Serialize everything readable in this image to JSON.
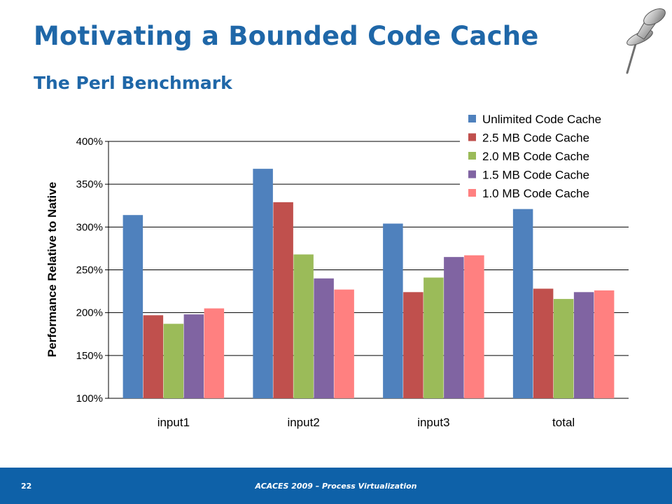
{
  "slide": {
    "title": "Motivating a Bounded Code Cache",
    "subtitle": "The Perl Benchmark"
  },
  "footer": {
    "page_number": "22",
    "text": "ACACES 2009 – Process Virtualization"
  },
  "decor": {
    "pin_icon": "push-pin-icon"
  },
  "chart_data": {
    "type": "bar",
    "title": "",
    "xlabel": "",
    "ylabel": "Performance Relative to Native",
    "ylim": [
      100,
      400
    ],
    "yticks": [
      100,
      150,
      200,
      250,
      300,
      350,
      400
    ],
    "ytick_labels": [
      "100%",
      "150%",
      "200%",
      "250%",
      "300%",
      "350%",
      "400%"
    ],
    "grid": true,
    "legend_position": "top-right",
    "categories": [
      "input1",
      "input2",
      "input3",
      "total"
    ],
    "series": [
      {
        "name": "Unlimited Code Cache",
        "color": "#4f81bd",
        "values": [
          314,
          368,
          304,
          321
        ]
      },
      {
        "name": "2.5 MB Code Cache",
        "color": "#c0504d",
        "values": [
          197,
          329,
          224,
          228
        ]
      },
      {
        "name": "2.0 MB Code Cache",
        "color": "#9bbb59",
        "values": [
          187,
          268,
          241,
          216
        ]
      },
      {
        "name": "1.5 MB Code Cache",
        "color": "#8064a2",
        "values": [
          198,
          240,
          265,
          224
        ]
      },
      {
        "name": "1.0 MB Code Cache",
        "color": "#ff8080",
        "values": [
          205,
          227,
          267,
          226
        ]
      }
    ]
  }
}
